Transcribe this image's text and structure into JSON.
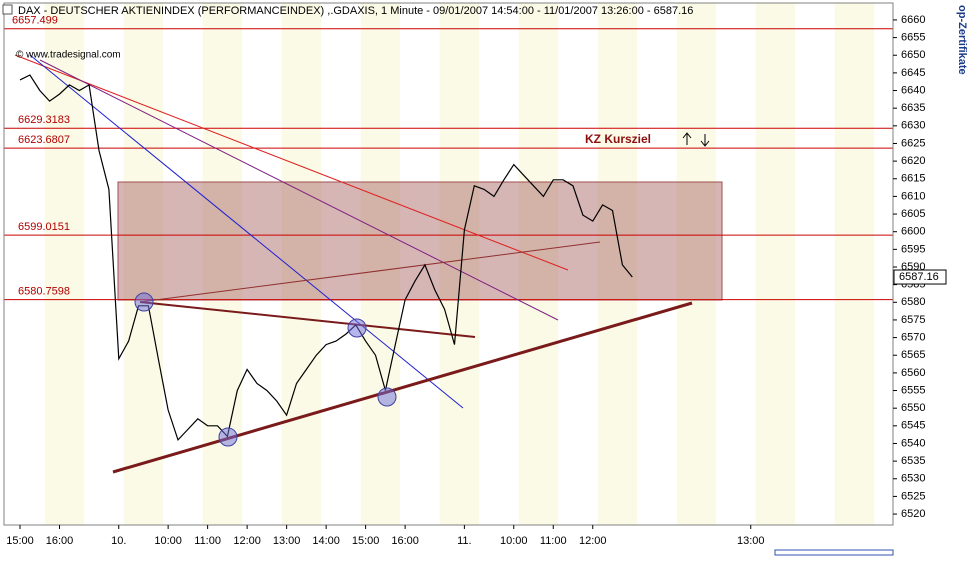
{
  "chart_data": {
    "type": "line",
    "title": "DAX  - DEUTSCHER AKTIENINDEX (PERFORMANCEINDEX) ,.GDAXIS, 1 Minute - 09/01/2007 14:54:00 - 11/01/2007 13:26:00 - 6587.16",
    "watermark": "© www.tradesignal.com",
    "annotation": "KZ Kursziel",
    "side_label": "op-Zertifikate",
    "last_price": 6587.16,
    "levels": [
      6657.499,
      6629.3183,
      6623.6807,
      6599.0151,
      6580.7598
    ],
    "categories": [
      "15:00",
      null,
      null,
      null,
      "16:00",
      null,
      null,
      null,
      null,
      null,
      "10.",
      null,
      null,
      null,
      null,
      "10:00",
      null,
      null,
      null,
      "11:00",
      null,
      null,
      null,
      "12:00",
      null,
      null,
      null,
      "13:00",
      null,
      null,
      null,
      "14:00",
      null,
      null,
      null,
      "15:00",
      null,
      null,
      null,
      "16:00",
      null,
      null,
      null,
      null,
      null,
      "11.",
      null,
      null,
      null,
      null,
      "10:00",
      null,
      null,
      null,
      "11:00",
      null,
      null,
      null,
      "12:00",
      null,
      null,
      null,
      null,
      null,
      null,
      null,
      null,
      null,
      null,
      null,
      null,
      null,
      null,
      null,
      "13:00",
      null,
      null,
      null,
      null,
      null,
      null,
      null,
      null,
      null,
      null,
      null,
      null,
      null,
      null
    ],
    "series": [
      {
        "name": "DAX",
        "color": "#000000",
        "values": [
          6643,
          6644.4,
          6640,
          6637,
          6639,
          6641.6,
          6640,
          6641.6,
          6623,
          6612,
          6564,
          6569,
          6579,
          6579,
          6564,
          6549.5,
          6541,
          6544,
          6547,
          6545,
          6545,
          6542,
          6555,
          6561,
          6557,
          6555,
          6552,
          6548,
          6557,
          6561,
          6565,
          6568,
          6569,
          6571,
          6573.6,
          6569,
          6565,
          6555,
          6568,
          6580.7,
          6586,
          6590.6,
          6583.5,
          6578,
          6568,
          6600.5,
          6613,
          6612,
          6610,
          6614.7,
          6619,
          6616,
          6613,
          6610,
          6614.7,
          6614.7,
          6613,
          6604.7,
          6603,
          6607.6,
          6606,
          6590.6,
          6587.16,
          null,
          null,
          null,
          null,
          null,
          null,
          null,
          null,
          null,
          null,
          null,
          null,
          null,
          null,
          null,
          null,
          null,
          null,
          null,
          null,
          null,
          null,
          null,
          null,
          null,
          null
        ]
      }
    ],
    "ylim": [
      6516.9,
      6664.8
    ],
    "yticks": [
      6520,
      6525,
      6530,
      6535,
      6540,
      6545,
      6550,
      6555,
      6560,
      6565,
      6570,
      6575,
      6580,
      6585,
      6590,
      6595,
      6600,
      6605,
      6610,
      6615,
      6620,
      6625,
      6630,
      6635,
      6640,
      6645,
      6650,
      6655,
      6660
    ],
    "level_color": "#cc0000"
  }
}
